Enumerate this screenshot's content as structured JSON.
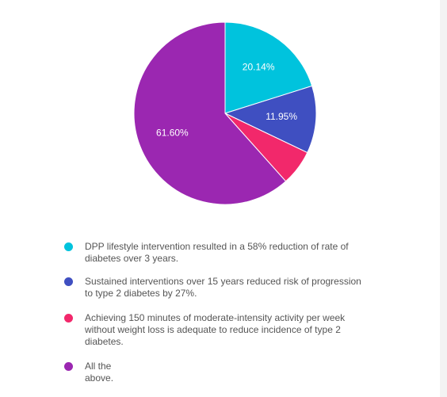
{
  "chart_data": {
    "type": "pie",
    "slices": [
      {
        "label": "DPP lifestyle intervention resulted in a 58% reduction of rate of diabetes over 3 years.",
        "value": 20.14,
        "value_label": "20.14%",
        "color": "#00c3dd"
      },
      {
        "label": "Sustained interventions over 15 years reduced risk of progression to type 2 diabetes by 27%.",
        "value": 11.95,
        "value_label": "11.95%",
        "color": "#3f4fc1"
      },
      {
        "label": "Achieving 150 minutes of moderate-intensity activity per week without weight loss is adequate to reduce incidence of type 2 diabetes.",
        "value": 6.31,
        "value_label": "",
        "color": "#f2286b"
      },
      {
        "label": "All the above.",
        "value": 61.6,
        "value_label": "61.60%",
        "color": "#9b27b1"
      }
    ],
    "legend_placement": "bottom"
  }
}
